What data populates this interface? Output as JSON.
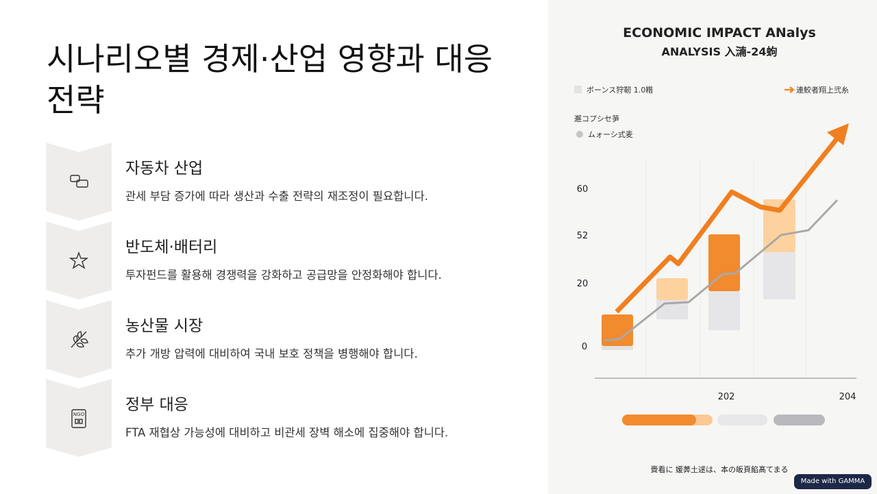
{
  "title": "시나리오별 경제·산업 영향과 대응 전략",
  "items": [
    {
      "heading": "자동차 산업",
      "text": "관세 부담 증가에 따라 생산과 수출 전략의 재조정이 필요합니다."
    },
    {
      "heading": "반도체·배터리",
      "text": "투자펀드를 활용해 경쟁력을 강화하고 공급망을 안정화해야 합니다."
    },
    {
      "heading": "농산물 시장",
      "text": "추가 개방 압력에 대비하여 국내 보호 정책을 병행해야 합니다."
    },
    {
      "heading": "정부 대응",
      "text": "FTA 재협상 가능성에 대비하고 비관세 장벽 해소에 집중해야 합니다."
    }
  ],
  "illustration": {
    "title": "ECONOMIC IMPACT ANalys",
    "subtitle": "ANALYSIS 入㵜-24蚼",
    "legend": [
      "ボーンス狩靭 1.0糌",
      "連鮫者翔上弐糸",
      "邂コプシセ芛",
      "ムォーシ式麦"
    ],
    "y_labels": [
      "60",
      "52",
      "20",
      "0"
    ],
    "x_labels": [
      "202",
      "204"
    ],
    "caption": "賫看に 媛莾土逑は、本の皈頁餡髙てまる"
  },
  "badge": "Made with GAMMA"
}
